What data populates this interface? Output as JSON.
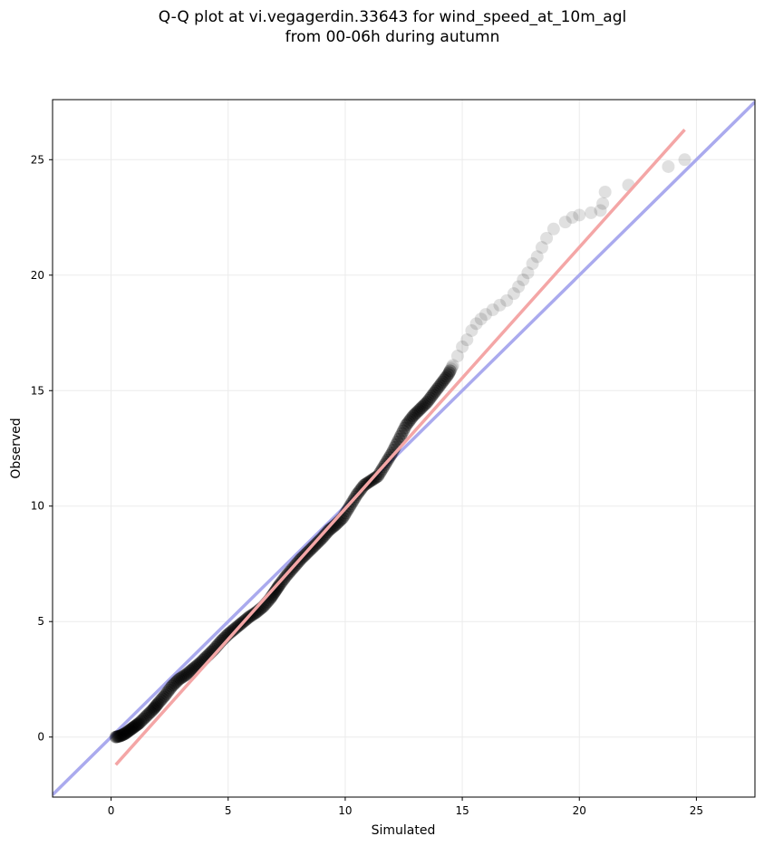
{
  "title": {
    "line1": "Q-Q plot at vi.vegagerdin.33643 for wind_speed_at_10m_agl",
    "line2": "from 00-06h during autumn"
  },
  "chart_data": {
    "type": "scatter",
    "xlabel": "Simulated",
    "ylabel": "Observed",
    "xlim": [
      -2.5,
      27.5
    ],
    "ylim": [
      -2.6,
      27.6
    ],
    "xticks": [
      0,
      5,
      10,
      15,
      20,
      25
    ],
    "yticks": [
      0,
      5,
      10,
      15,
      20,
      25
    ],
    "grid": true,
    "colors": {
      "points": "#000000",
      "identity_line": "#aaaaee",
      "fit_line": "#f4a6a6",
      "frame": "#000000",
      "grid": "#ebebeb"
    },
    "identity_line": {
      "x": [
        -2.5,
        27.5
      ],
      "y": [
        -2.5,
        27.5
      ]
    },
    "fit_line": {
      "x": [
        0.2,
        24.5
      ],
      "y": [
        -1.2,
        26.3
      ]
    },
    "quantiles": {
      "x": [
        0.2,
        0.4,
        0.6,
        0.8,
        1.0,
        1.2,
        1.5,
        1.8,
        2.0,
        2.3,
        2.6,
        2.9,
        3.2,
        3.5,
        3.8,
        4.1,
        4.4,
        4.7,
        5.0,
        5.3,
        5.6,
        5.9,
        6.2,
        6.5,
        6.8,
        7.0,
        7.2,
        7.5,
        7.8,
        8.1,
        8.4,
        8.7,
        9.0,
        9.3,
        9.6,
        9.9,
        10.2,
        10.5,
        10.8,
        11.1,
        11.4,
        11.7,
        12.0,
        12.3,
        12.6,
        12.9,
        13.2,
        13.5,
        13.8,
        14.1,
        14.4,
        14.6,
        14.8,
        15.0,
        15.2,
        15.4,
        15.6,
        15.8,
        16.0,
        16.3,
        16.6,
        16.9,
        17.2,
        17.4,
        17.6,
        17.8,
        18.0,
        18.2,
        18.4,
        18.6,
        18.9,
        19.4,
        19.7,
        20.0,
        20.5,
        20.9,
        21.0,
        21.1,
        22.1,
        23.8,
        24.5
      ],
      "y": [
        0.0,
        0.05,
        0.15,
        0.3,
        0.45,
        0.6,
        0.9,
        1.2,
        1.45,
        1.8,
        2.2,
        2.5,
        2.7,
        2.95,
        3.2,
        3.5,
        3.8,
        4.15,
        4.45,
        4.7,
        4.95,
        5.2,
        5.4,
        5.65,
        6.0,
        6.3,
        6.6,
        7.0,
        7.35,
        7.7,
        8.0,
        8.3,
        8.6,
        8.95,
        9.2,
        9.5,
        10.0,
        10.5,
        10.9,
        11.1,
        11.3,
        11.8,
        12.3,
        12.9,
        13.5,
        13.9,
        14.2,
        14.5,
        14.9,
        15.3,
        15.7,
        16.1,
        16.5,
        16.9,
        17.2,
        17.6,
        17.9,
        18.1,
        18.3,
        18.5,
        18.7,
        18.9,
        19.2,
        19.5,
        19.8,
        20.1,
        20.5,
        20.8,
        21.2,
        21.6,
        22.0,
        22.3,
        22.5,
        22.6,
        22.7,
        22.8,
        23.1,
        23.6,
        23.9,
        24.7,
        25.0
      ]
    }
  }
}
